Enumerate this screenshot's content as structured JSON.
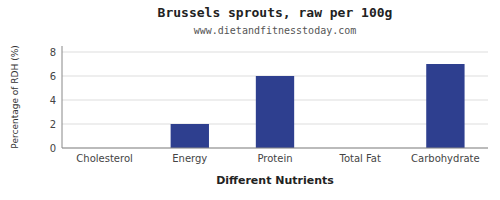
{
  "chart_data": {
    "type": "bar",
    "title": "Brussels sprouts, raw per 100g",
    "subtitle": "www.dietandfitnesstoday.com",
    "xlabel": "Different Nutrients",
    "ylabel": "Percentage of RDH (%)",
    "categories": [
      "Cholesterol",
      "Energy",
      "Protein",
      "Total Fat",
      "Carbohydrate"
    ],
    "values": [
      0,
      2,
      6,
      0,
      7
    ],
    "color": "#2e3f8f",
    "ylim": [
      0,
      8.5
    ],
    "yticks": [
      0,
      2,
      4,
      6,
      8
    ],
    "grid": true
  }
}
